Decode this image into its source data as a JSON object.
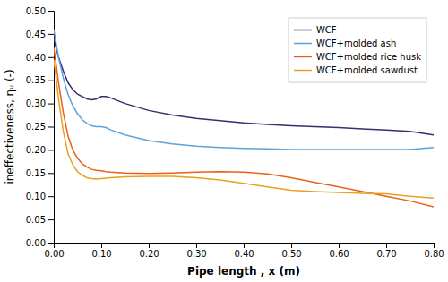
{
  "chart_data": {
    "type": "line",
    "xlabel": "Pipe length , x (m)",
    "ylabel": "ineffectiveness, ηᵤ (-)",
    "xlim": [
      0,
      0.8
    ],
    "ylim": [
      0.0,
      0.5
    ],
    "xticks": [
      {
        "value": 0.0,
        "label": "0.00"
      },
      {
        "value": 0.1,
        "label": "0.10"
      },
      {
        "value": 0.2,
        "label": "0.20"
      },
      {
        "value": 0.3,
        "label": "0.30"
      },
      {
        "value": 0.4,
        "label": "0.40"
      },
      {
        "value": 0.5,
        "label": "0.50"
      },
      {
        "value": 0.6,
        "label": "0.60"
      },
      {
        "value": 0.7,
        "label": "0.70"
      },
      {
        "value": 0.8,
        "label": "0.80"
      }
    ],
    "yticks": [
      {
        "value": 0.0,
        "label": "0.00"
      },
      {
        "value": 0.05,
        "label": "0.05"
      },
      {
        "value": 0.1,
        "label": "0.10"
      },
      {
        "value": 0.15,
        "label": "0.15"
      },
      {
        "value": 0.2,
        "label": "0.20"
      },
      {
        "value": 0.25,
        "label": "0.25"
      },
      {
        "value": 0.3,
        "label": "0.30"
      },
      {
        "value": 0.35,
        "label": "0.35"
      },
      {
        "value": 0.4,
        "label": "0.40"
      },
      {
        "value": 0.45,
        "label": "0.45"
      },
      {
        "value": 0.5,
        "label": "0.50"
      }
    ],
    "x": [
      0.0,
      0.005,
      0.01,
      0.02,
      0.03,
      0.04,
      0.05,
      0.06,
      0.07,
      0.08,
      0.09,
      0.1,
      0.11,
      0.12,
      0.15,
      0.2,
      0.25,
      0.3,
      0.35,
      0.4,
      0.45,
      0.5,
      0.55,
      0.6,
      0.65,
      0.7,
      0.75,
      0.8
    ],
    "series": [
      {
        "name": "WCF",
        "color": "#3d2b6e",
        "values": [
          0.44,
          0.42,
          0.4,
          0.37,
          0.345,
          0.33,
          0.32,
          0.315,
          0.31,
          0.308,
          0.31,
          0.315,
          0.315,
          0.312,
          0.3,
          0.285,
          0.275,
          0.268,
          0.263,
          0.258,
          0.255,
          0.252,
          0.25,
          0.248,
          0.245,
          0.243,
          0.24,
          0.232
        ]
      },
      {
        "name": "WCF+molded ash",
        "color": "#5ba3d9",
        "values": [
          0.46,
          0.43,
          0.4,
          0.355,
          0.32,
          0.295,
          0.278,
          0.265,
          0.257,
          0.252,
          0.25,
          0.25,
          0.248,
          0.243,
          0.232,
          0.22,
          0.213,
          0.208,
          0.205,
          0.203,
          0.202,
          0.201,
          0.201,
          0.201,
          0.201,
          0.201,
          0.201,
          0.205
        ]
      },
      {
        "name": "WCF+molded rice husk",
        "color": "#e8601c",
        "values": [
          0.42,
          0.385,
          0.345,
          0.28,
          0.23,
          0.2,
          0.182,
          0.17,
          0.163,
          0.158,
          0.156,
          0.155,
          0.153,
          0.152,
          0.15,
          0.149,
          0.15,
          0.152,
          0.153,
          0.152,
          0.148,
          0.14,
          0.13,
          0.12,
          0.11,
          0.1,
          0.09,
          0.077
        ]
      },
      {
        "name": "WCF+molded sawdust",
        "color": "#e8a020",
        "values": [
          0.395,
          0.355,
          0.31,
          0.24,
          0.192,
          0.168,
          0.153,
          0.145,
          0.14,
          0.138,
          0.137,
          0.138,
          0.139,
          0.14,
          0.142,
          0.143,
          0.143,
          0.14,
          0.135,
          0.128,
          0.12,
          0.113,
          0.11,
          0.108,
          0.106,
          0.105,
          0.1,
          0.096
        ]
      }
    ],
    "legend": "upper right",
    "grid": false
  }
}
